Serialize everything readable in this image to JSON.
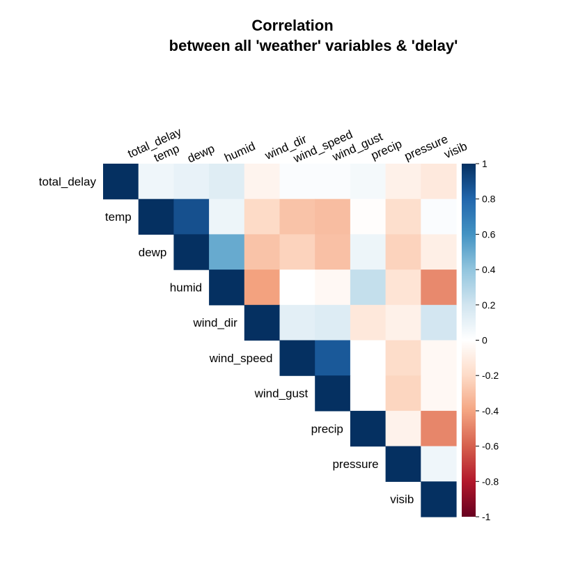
{
  "chart_data": {
    "type": "heatmap",
    "title_lines": [
      "Correlation",
      "between all 'weather' variables & 'delay'"
    ],
    "variables": [
      "total_delay",
      "temp",
      "dewp",
      "humid",
      "wind_dir",
      "wind_speed",
      "wind_gust",
      "precip",
      "pressure",
      "visib"
    ],
    "layout": "upper-triangle",
    "matrix": [
      [
        1.0,
        0.07,
        0.1,
        0.14,
        -0.06,
        0.02,
        0.02,
        0.05,
        -0.08,
        -0.12
      ],
      [
        0.07,
        1.0,
        0.88,
        0.08,
        -0.2,
        -0.29,
        -0.31,
        -0.01,
        -0.18,
        0.02
      ],
      [
        0.1,
        0.88,
        1.0,
        0.51,
        -0.29,
        -0.23,
        -0.3,
        0.08,
        -0.23,
        -0.09
      ],
      [
        0.14,
        0.08,
        0.51,
        1.0,
        -0.41,
        0.0,
        -0.04,
        0.24,
        -0.15,
        -0.48
      ],
      [
        -0.06,
        -0.2,
        -0.29,
        -0.41,
        1.0,
        0.12,
        0.15,
        -0.13,
        -0.08,
        0.19
      ],
      [
        0.02,
        -0.29,
        -0.23,
        0.0,
        0.12,
        1.0,
        0.85,
        0.0,
        -0.19,
        -0.04
      ],
      [
        0.02,
        -0.31,
        -0.3,
        -0.04,
        0.15,
        0.85,
        1.0,
        0.0,
        -0.22,
        -0.04
      ],
      [
        0.05,
        -0.01,
        0.08,
        0.24,
        -0.13,
        0.0,
        0.0,
        1.0,
        -0.07,
        -0.49
      ],
      [
        -0.08,
        -0.18,
        -0.23,
        -0.15,
        -0.08,
        -0.19,
        -0.22,
        -0.07,
        1.0,
        0.07
      ],
      [
        -0.12,
        0.02,
        -0.09,
        -0.48,
        0.19,
        -0.04,
        -0.04,
        -0.49,
        0.07,
        1.0
      ]
    ],
    "colorbar": {
      "ticks": [
        1,
        0.8,
        0.6,
        0.4,
        0.2,
        0,
        -0.2,
        -0.4,
        -0.6,
        -0.8,
        -1
      ],
      "tick_labels": [
        "1",
        "0.8",
        "0.6",
        "0.4",
        "0.2",
        "0",
        "-0.2",
        "-0.4",
        "-0.6",
        "-0.8",
        "-1"
      ],
      "range": [
        -1,
        1
      ]
    },
    "colors": {
      "neg_end": "#67001F",
      "neg_mid": "#D6604D",
      "neg_light": "#FDDBC7",
      "zero": "#FFFFFF",
      "pos_light": "#D1E5F0",
      "pos_mid": "#4393C3",
      "pos_end": "#053061"
    }
  }
}
